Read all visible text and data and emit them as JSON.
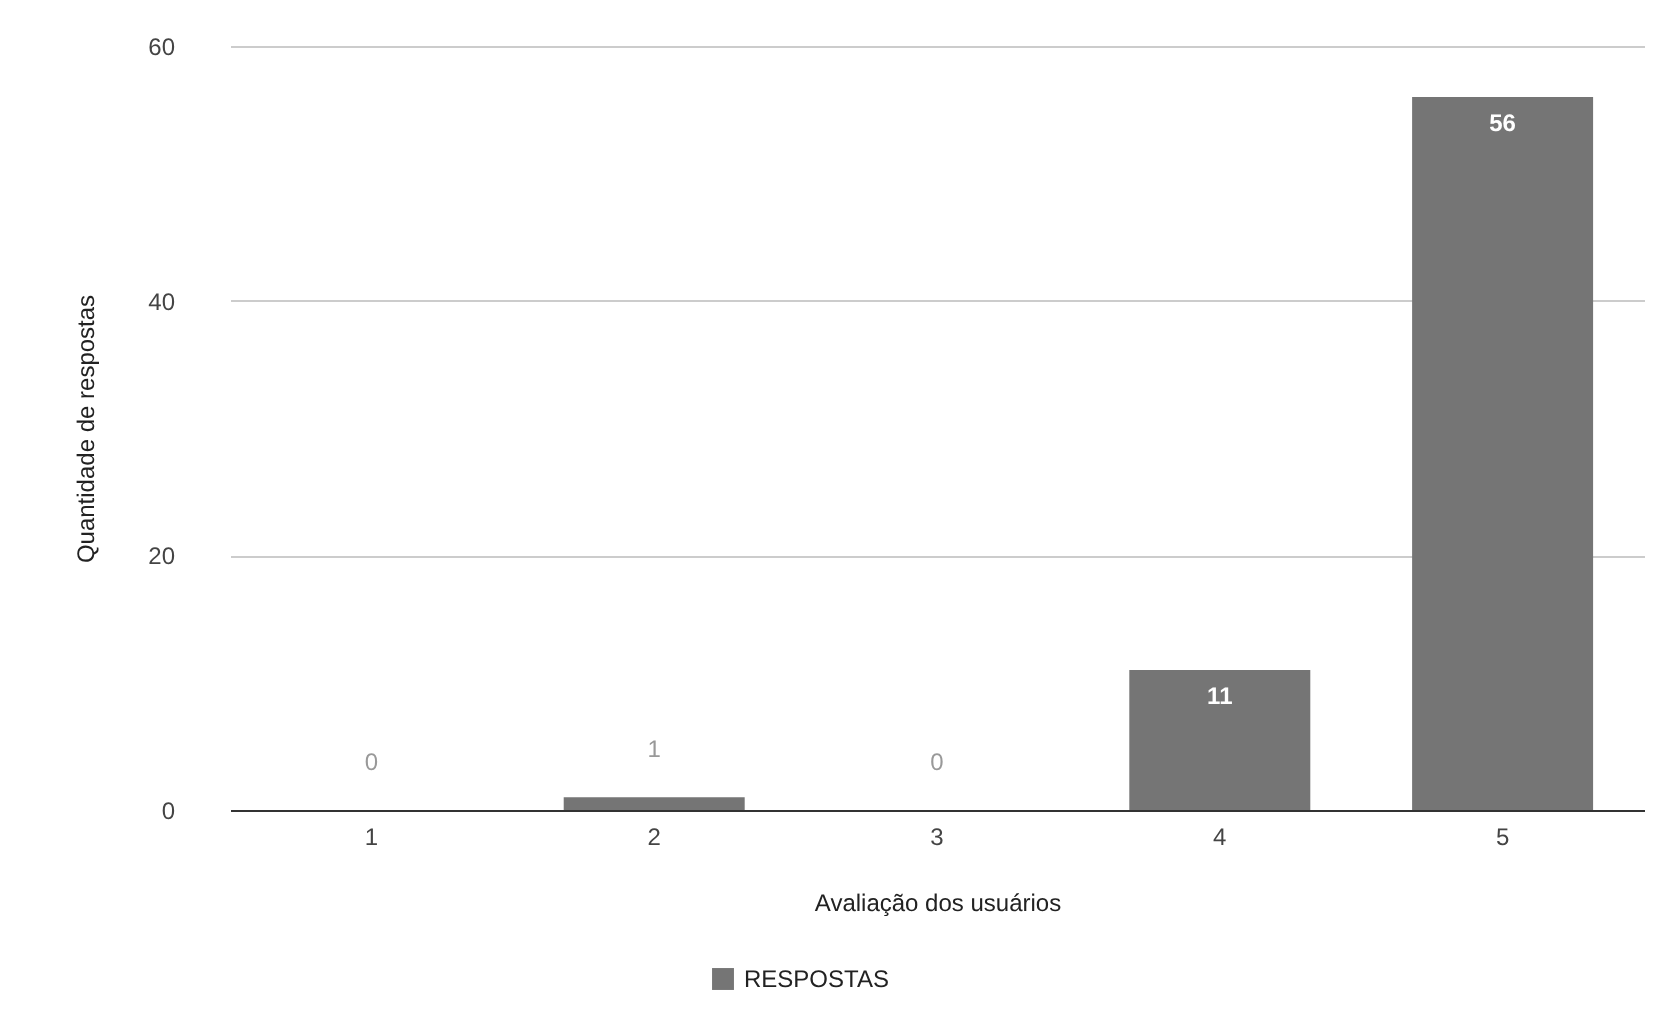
{
  "chart_data": {
    "type": "bar",
    "xlabel": "Avaliação dos usuários",
    "ylabel": "Quantidade de respostas",
    "categories": [
      "1",
      "2",
      "3",
      "4",
      "5"
    ],
    "series": [
      {
        "name": "RESPOSTAS",
        "color": "#757575",
        "values": [
          0,
          1,
          0,
          11,
          56
        ]
      }
    ],
    "ylim": [
      0,
      60
    ],
    "yticks": [
      0,
      20,
      40,
      60
    ],
    "grid": "y",
    "legend": "bottom",
    "data_labels": true
  }
}
